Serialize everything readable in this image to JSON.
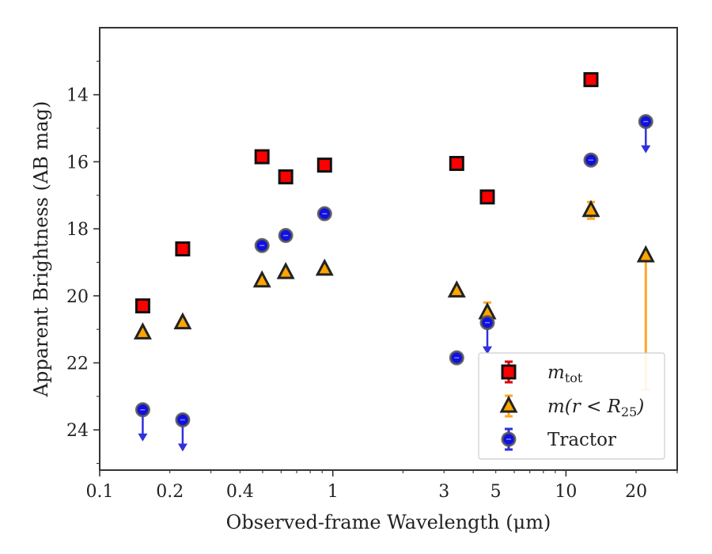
{
  "chart_data": {
    "type": "scatter",
    "xlabel": "Observed-frame Wavelength (μm)",
    "ylabel": "Apparent Brightness (AB mag)",
    "xscale": "log",
    "xlim": [
      0.1,
      30
    ],
    "ylim": [
      25.2,
      12.0
    ],
    "y_inverted": true,
    "x_ticks": [
      0.1,
      0.2,
      0.4,
      1,
      3,
      5,
      10,
      20
    ],
    "x_tick_labels": [
      "0.1",
      "0.2",
      "0.4",
      "1",
      "3",
      "5",
      "10",
      "20"
    ],
    "y_ticks": [
      14,
      16,
      18,
      20,
      22,
      24
    ],
    "y_tick_labels": [
      "14",
      "16",
      "18",
      "20",
      "22",
      "24"
    ],
    "legend_position": "lower-right",
    "series": [
      {
        "name": "m_tot",
        "legend_main": "m",
        "legend_sub": "tot",
        "marker": "square",
        "color": "#ff0000",
        "edge": "#111111",
        "err_color": "#e00000",
        "x": [
          0.153,
          0.227,
          0.497,
          0.628,
          0.922,
          3.4,
          4.6,
          12.8
        ],
        "y": [
          20.3,
          18.6,
          15.85,
          16.45,
          16.1,
          16.05,
          17.05,
          13.55
        ]
      },
      {
        "name": "m(r<R25)",
        "legend_main": "m(r < R",
        "legend_sub": "25",
        "legend_tail": ")",
        "marker": "triangle",
        "color": "#ffa500",
        "edge": "#222222",
        "err_color": "#ffa726",
        "x": [
          0.153,
          0.227,
          0.497,
          0.628,
          0.922,
          3.4,
          4.6,
          12.8,
          22.0
        ],
        "y": [
          21.1,
          20.8,
          19.55,
          19.3,
          19.2,
          19.85,
          20.5,
          17.45,
          18.8
        ],
        "err": [
          [
            0,
            0
          ],
          [
            0,
            0
          ],
          [
            0,
            0
          ],
          [
            0,
            0
          ],
          [
            0,
            0
          ],
          [
            0,
            0
          ],
          [
            0.3,
            0.3
          ],
          [
            0.25,
            0.25
          ],
          [
            0,
            4.0
          ]
        ]
      },
      {
        "name": "Tractor",
        "legend_main": "Tractor",
        "marker": "circle",
        "color": "#1010e0",
        "edge": "#555555",
        "err_color": "#3030e0",
        "x": [
          0.153,
          0.227,
          0.497,
          0.628,
          0.922,
          3.4,
          4.6,
          12.8,
          22.0
        ],
        "y": [
          23.4,
          23.7,
          18.5,
          18.2,
          17.55,
          21.85,
          20.8,
          15.95,
          14.8
        ],
        "upper_limit": [
          true,
          true,
          false,
          false,
          false,
          false,
          true,
          false,
          true
        ]
      }
    ]
  }
}
